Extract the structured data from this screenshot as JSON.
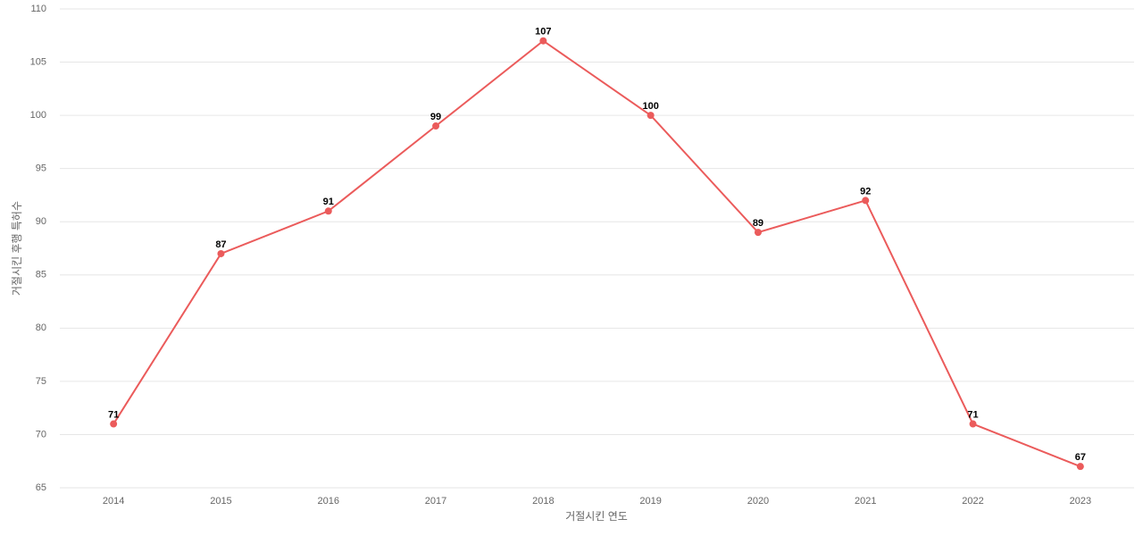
{
  "chart_data": {
    "type": "line",
    "x_label": "거절시킨 연도",
    "y_label": "거절시킨 후행 특허수",
    "categories": [
      "2014",
      "2015",
      "2016",
      "2017",
      "2018",
      "2019",
      "2020",
      "2021",
      "2022",
      "2023"
    ],
    "series": [
      {
        "color": "#eb5b5b",
        "values": [
          71,
          87,
          91,
          99,
          107,
          100,
          89,
          92,
          71,
          67
        ]
      }
    ],
    "ylim": [
      65,
      110
    ],
    "yticks": [
      65,
      70,
      75,
      80,
      85,
      90,
      95,
      100,
      105,
      110
    ],
    "grid": true,
    "data_labels": true
  }
}
